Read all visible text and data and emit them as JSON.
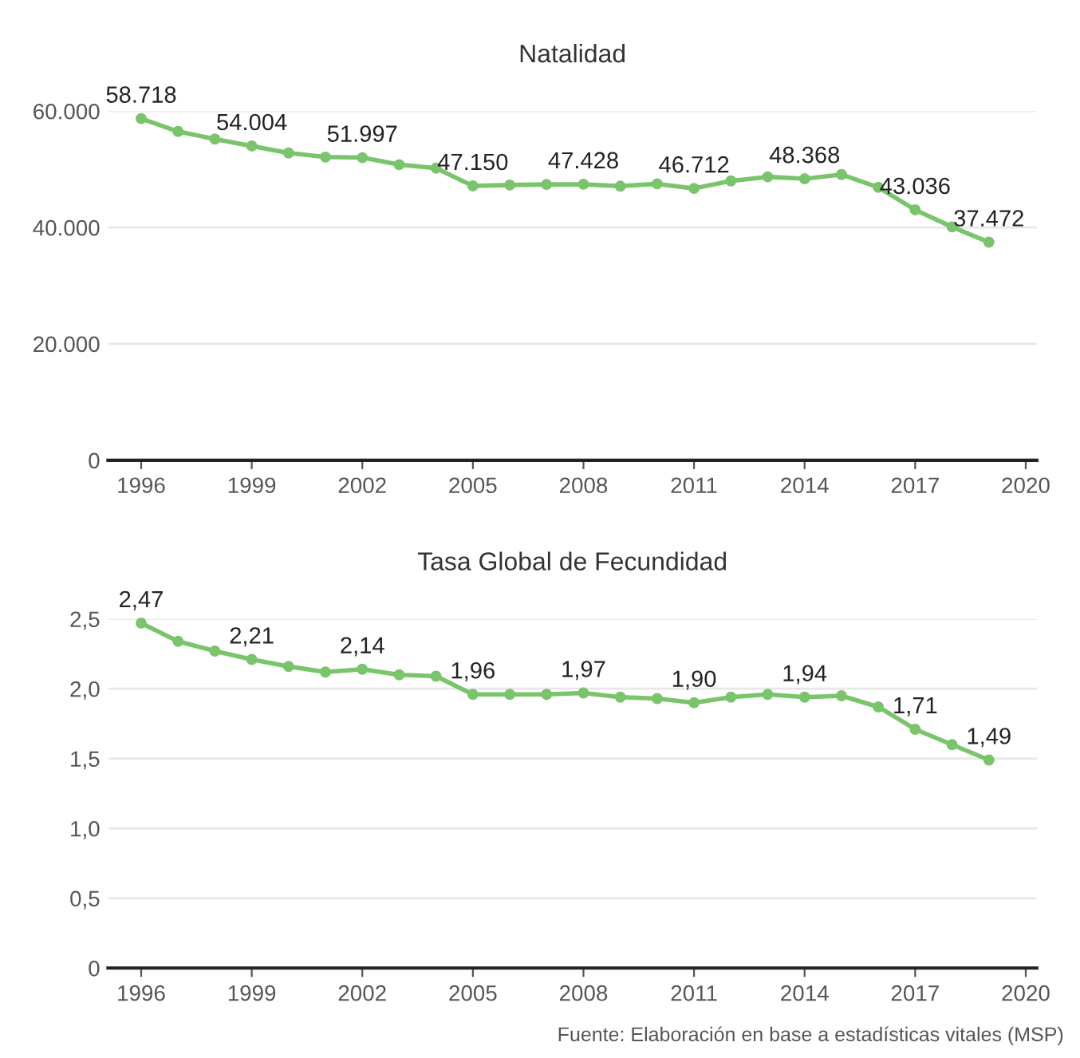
{
  "chart_data": [
    {
      "type": "line",
      "title": "Natalidad",
      "x": [
        1996,
        1997,
        1998,
        1999,
        2000,
        2001,
        2002,
        2003,
        2004,
        2005,
        2006,
        2007,
        2008,
        2009,
        2010,
        2011,
        2012,
        2013,
        2014,
        2015,
        2016,
        2017,
        2018,
        2019
      ],
      "series": [
        {
          "color": "#7ac46c",
          "values": [
            58718,
            56500,
            55200,
            54004,
            52800,
            52100,
            51997,
            50800,
            50200,
            47150,
            47300,
            47400,
            47428,
            47100,
            47500,
            46712,
            48000,
            48700,
            48368,
            49100,
            46900,
            43036,
            40100,
            37472
          ],
          "value_labels": [
            "58.718",
            null,
            null,
            "54.004",
            null,
            null,
            "51.997",
            null,
            null,
            "47.150",
            null,
            null,
            "47.428",
            null,
            null,
            "46.712",
            null,
            null,
            "48.368",
            null,
            null,
            "43.036",
            null,
            "37.472"
          ]
        }
      ],
      "xlim": [
        1995.1,
        2020.3
      ],
      "xticks": [
        1996,
        1999,
        2002,
        2005,
        2008,
        2011,
        2014,
        2017,
        2020
      ],
      "ylim": [
        0,
        60000
      ],
      "yticks": [
        {
          "value": 0,
          "label": "0"
        },
        {
          "value": 20000,
          "label": "20.000"
        },
        {
          "value": 40000,
          "label": "40.000"
        },
        {
          "value": 60000,
          "label": "60.000"
        }
      ],
      "grid": "y",
      "marker": "circle",
      "line_style": "solid"
    },
    {
      "type": "line",
      "title": "Tasa Global de Fecundidad",
      "x": [
        1996,
        1997,
        1998,
        1999,
        2000,
        2001,
        2002,
        2003,
        2004,
        2005,
        2006,
        2007,
        2008,
        2009,
        2010,
        2011,
        2012,
        2013,
        2014,
        2015,
        2016,
        2017,
        2018,
        2019
      ],
      "series": [
        {
          "color": "#7ac46c",
          "values": [
            2.47,
            2.34,
            2.27,
            2.21,
            2.16,
            2.12,
            2.14,
            2.1,
            2.09,
            1.96,
            1.96,
            1.96,
            1.97,
            1.94,
            1.93,
            1.9,
            1.94,
            1.96,
            1.94,
            1.95,
            1.87,
            1.71,
            1.6,
            1.49
          ],
          "value_labels": [
            "2,47",
            null,
            null,
            "2,21",
            null,
            null,
            "2,14",
            null,
            null,
            "1,96",
            null,
            null,
            "1,97",
            null,
            null,
            "1,90",
            null,
            null,
            "1,94",
            null,
            null,
            "1,71",
            null,
            "1,49"
          ]
        }
      ],
      "xlim": [
        1995.1,
        2020.3
      ],
      "xticks": [
        1996,
        1999,
        2002,
        2005,
        2008,
        2011,
        2014,
        2017,
        2020
      ],
      "ylim": [
        0,
        2.5
      ],
      "yticks": [
        {
          "value": 0,
          "label": "0"
        },
        {
          "value": 0.5,
          "label": "0,5"
        },
        {
          "value": 1.0,
          "label": "1,0"
        },
        {
          "value": 1.5,
          "label": "1,5"
        },
        {
          "value": 2.0,
          "label": "2,0"
        },
        {
          "value": 2.5,
          "label": "2,5"
        }
      ],
      "grid": "y",
      "marker": "circle",
      "line_style": "solid",
      "annotations": [
        "Fuente: Elaboración en base a estadísticas vitales (MSP)"
      ]
    }
  ]
}
